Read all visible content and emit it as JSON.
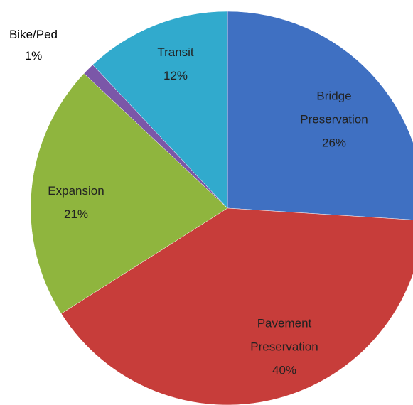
{
  "chart_data": {
    "type": "pie",
    "categories": [
      "Bridge Preservation",
      "Pavement Preservation",
      "Expansion",
      "Bike/Ped",
      "Transit"
    ],
    "values": [
      26,
      40,
      21,
      1,
      12
    ],
    "value_labels": [
      "26%",
      "40%",
      "21%",
      "1%",
      "12%"
    ],
    "colors": [
      "#3f70c2",
      "#c73d3a",
      "#8fb53e",
      "#7b57a8",
      "#31aacd"
    ]
  }
}
